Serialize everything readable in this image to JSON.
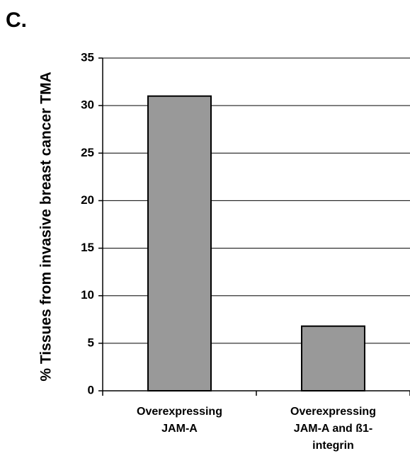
{
  "panel_label": "C.",
  "chart_data": {
    "type": "bar",
    "ylabel": "% Tissues from invasive breast cancer TMA",
    "categories": [
      "Overexpressing JAM-A",
      "Overexpressing JAM-A and ß1-integrin"
    ],
    "values": [
      31,
      6.8
    ],
    "color": "#999999",
    "ylim": [
      0,
      35
    ],
    "yticks": [
      0,
      5,
      10,
      15,
      20,
      25,
      30,
      35
    ],
    "grid": true
  }
}
